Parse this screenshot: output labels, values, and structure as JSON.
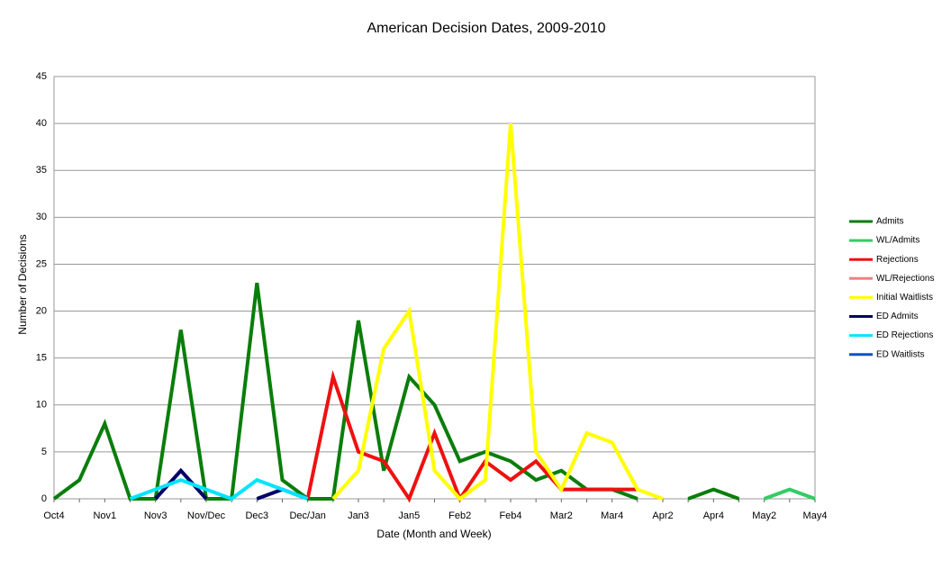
{
  "chart_data": {
    "type": "line",
    "title": "American Decision Dates, 2009-2010",
    "x_label": "Date (Month and Week)",
    "y_label": "Number of Decisions",
    "categories": [
      "Oct4",
      null,
      "Nov1",
      null,
      "Nov3",
      null,
      "Nov/Dec",
      null,
      "Dec3",
      null,
      "Dec/Jan",
      null,
      "Jan3",
      null,
      "Jan5",
      null,
      "Feb2",
      null,
      "Feb4",
      null,
      "Mar2",
      null,
      "Mar4",
      null,
      "Apr2",
      null,
      "Apr4",
      null,
      "May2",
      null,
      "May4"
    ],
    "series": [
      {
        "name": "Admits",
        "color": "#0a7d0a",
        "values": [
          0,
          2,
          8,
          0,
          0,
          18,
          0,
          0,
          23,
          2,
          0,
          0,
          19,
          3,
          13,
          10,
          4,
          5,
          4,
          2,
          3,
          1,
          1,
          0,
          null,
          0,
          1,
          0,
          null,
          null,
          null
        ]
      },
      {
        "name": "WL/Admits",
        "color": "#33cc66",
        "values": [
          null,
          null,
          null,
          null,
          null,
          null,
          null,
          null,
          null,
          null,
          null,
          null,
          null,
          null,
          null,
          null,
          null,
          null,
          null,
          null,
          null,
          null,
          null,
          null,
          null,
          null,
          null,
          null,
          0,
          1,
          0
        ]
      },
      {
        "name": "Rejections",
        "color": "#ee1111",
        "values": [
          null,
          null,
          null,
          null,
          null,
          null,
          null,
          null,
          null,
          null,
          0,
          13,
          5,
          4,
          0,
          7,
          0,
          4,
          2,
          4,
          1,
          1,
          1,
          1,
          null,
          null,
          null,
          null,
          null,
          null,
          null
        ]
      },
      {
        "name": "WL/Rejections",
        "color": "#f08080",
        "values": [
          null,
          null,
          null,
          null,
          null,
          null,
          null,
          null,
          null,
          null,
          null,
          null,
          null,
          null,
          null,
          null,
          null,
          null,
          null,
          null,
          null,
          null,
          null,
          null,
          null,
          null,
          null,
          null,
          null,
          null,
          null
        ]
      },
      {
        "name": "Initial Waitlists",
        "color": "#ffff00",
        "values": [
          null,
          null,
          null,
          null,
          null,
          null,
          null,
          null,
          null,
          null,
          null,
          0,
          3,
          16,
          20,
          3,
          0,
          2,
          40,
          5,
          1,
          7,
          6,
          1,
          0,
          null,
          null,
          null,
          null,
          null,
          null
        ]
      },
      {
        "name": "ED Admits",
        "color": "#000066",
        "values": [
          null,
          null,
          null,
          null,
          0,
          3,
          0,
          null,
          0,
          1,
          0,
          null,
          null,
          null,
          null,
          null,
          null,
          null,
          null,
          null,
          null,
          null,
          null,
          null,
          null,
          null,
          null,
          null,
          null,
          null,
          null
        ]
      },
      {
        "name": "ED Rejections",
        "color": "#00e5ff",
        "values": [
          null,
          null,
          null,
          0,
          1,
          2,
          1,
          0,
          2,
          1,
          0,
          null,
          null,
          null,
          null,
          null,
          null,
          null,
          null,
          null,
          null,
          null,
          null,
          null,
          null,
          null,
          null,
          null,
          null,
          null,
          null
        ]
      },
      {
        "name": "ED Waitlists",
        "color": "#0055cc",
        "values": [
          null,
          null,
          null,
          null,
          null,
          null,
          null,
          null,
          null,
          null,
          null,
          null,
          null,
          null,
          null,
          null,
          null,
          null,
          null,
          null,
          null,
          null,
          null,
          null,
          null,
          null,
          null,
          null,
          null,
          null,
          null
        ]
      }
    ],
    "ylim": [
      0,
      45
    ],
    "yticks": [
      0,
      5,
      10,
      15,
      20,
      25,
      30,
      35,
      40,
      45
    ],
    "grid": true,
    "legend": "right"
  }
}
